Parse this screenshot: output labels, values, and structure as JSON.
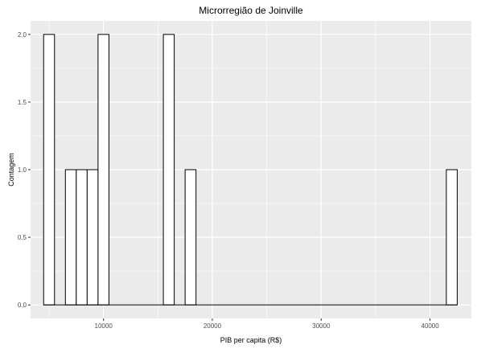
{
  "chart_data": {
    "type": "bar",
    "title": "Microrregião de  Joinville",
    "xlabel": "PIB per capita (R$)",
    "ylabel": "Contagem",
    "xlim": [
      3300,
      43800
    ],
    "ylim": [
      -0.1,
      2.1
    ],
    "x_ticks": [
      10000,
      20000,
      30000,
      40000
    ],
    "x_tick_labels": [
      "10000",
      "20000",
      "30000",
      "40000"
    ],
    "y_ticks": [
      0,
      0.5,
      1,
      1.5,
      2
    ],
    "y_tick_labels": [
      "0.0",
      "0.5",
      "1.0",
      "1.5",
      "2.0"
    ],
    "bin_width": 1000,
    "bins": [
      {
        "x_start": 4500,
        "x_end": 5500,
        "count": 2
      },
      {
        "x_start": 6500,
        "x_end": 7500,
        "count": 1
      },
      {
        "x_start": 7500,
        "x_end": 8500,
        "count": 1
      },
      {
        "x_start": 8500,
        "x_end": 9500,
        "count": 1
      },
      {
        "x_start": 9500,
        "x_end": 10500,
        "count": 2
      },
      {
        "x_start": 15500,
        "x_end": 16500,
        "count": 2
      },
      {
        "x_start": 17500,
        "x_end": 18500,
        "count": 1
      },
      {
        "x_start": 41500,
        "x_end": 42500,
        "count": 1
      }
    ],
    "baseline_range": [
      4500,
      42500
    ],
    "grid": true,
    "colors": {
      "panel": "#ebebeb",
      "grid_major": "#ffffff",
      "bar_fill": "#ffffff",
      "bar_stroke": "#000000"
    }
  }
}
